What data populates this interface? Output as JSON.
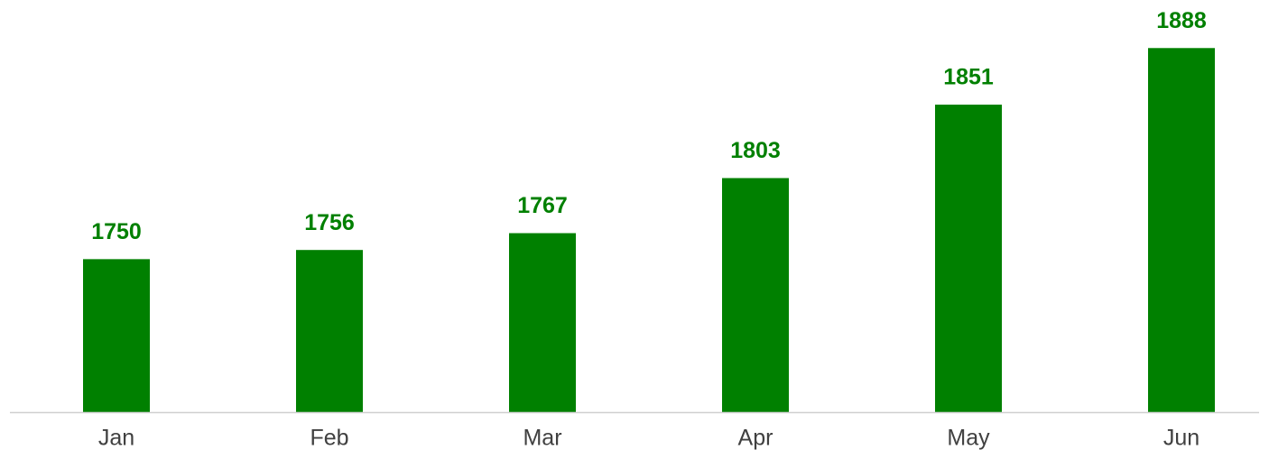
{
  "chart_data": {
    "type": "bar",
    "categories": [
      "Jan",
      "Feb",
      "Mar",
      "Apr",
      "May",
      "Jun"
    ],
    "values": [
      1750,
      1756,
      1767,
      1803,
      1851,
      1888
    ],
    "color": "#008000",
    "ylim": [
      1650,
      1920
    ]
  }
}
